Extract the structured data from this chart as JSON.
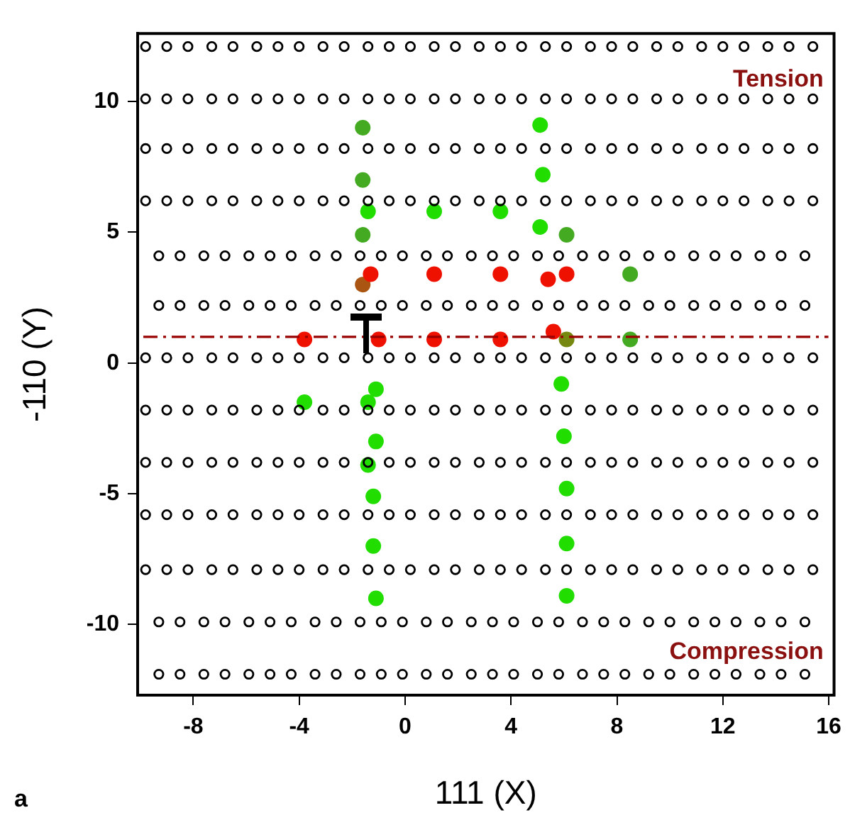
{
  "chart_data": {
    "type": "scatter",
    "xlabel": "111 (X)",
    "ylabel": "-110 (Y)",
    "xlim": [
      -10.1,
      16.2
    ],
    "ylim": [
      -12.7,
      12.6
    ],
    "xticks": [
      -8,
      -4,
      0,
      4,
      8,
      12,
      16
    ],
    "yticks": [
      -10,
      -5,
      0,
      5,
      10
    ],
    "grid": false,
    "legend": false,
    "marker": "circle",
    "annotations": [
      "Tension",
      "Compression",
      "a"
    ],
    "ref_lines": [
      {
        "axis": "y",
        "value": 1,
        "color": "#990000",
        "line_style": "dashed"
      }
    ],
    "series": [
      {
        "color": "#000000",
        "x": [
          -9.8,
          -9.0,
          -8.2,
          -7.3,
          -6.5,
          -5.6,
          -4.8,
          -4.0,
          -3.1,
          -2.3,
          -1.4,
          -0.6,
          0.2,
          1.1,
          1.9,
          2.8,
          3.6,
          4.4,
          5.3,
          6.1,
          7.0,
          7.8,
          8.6,
          9.5,
          10.3,
          11.2,
          12.0,
          12.8,
          13.7,
          14.5,
          15.4
        ],
        "values": [
          12.1,
          12.1,
          12.1,
          12.1,
          12.1,
          12.1,
          12.1,
          12.1,
          12.1,
          12.1,
          12.1,
          12.1,
          12.1,
          12.1,
          12.1,
          12.1,
          12.1,
          12.1,
          12.1,
          12.1,
          12.1,
          12.1,
          12.1,
          12.1,
          12.1,
          12.1,
          12.1,
          12.1,
          12.1,
          12.1,
          12.1
        ]
      },
      {
        "color": "#000000",
        "x": [
          -9.8,
          -9.0,
          -8.2,
          -7.3,
          -6.5,
          -5.6,
          -4.8,
          -4.0,
          -3.1,
          -2.3,
          -1.4,
          -0.6,
          0.2,
          1.1,
          1.9,
          2.8,
          3.6,
          4.4,
          5.3,
          6.1,
          7.0,
          7.8,
          8.6,
          9.5,
          10.3,
          11.2,
          12.0,
          12.8,
          13.7,
          14.5,
          15.4
        ],
        "values": [
          10.1,
          10.1,
          10.1,
          10.1,
          10.1,
          10.1,
          10.1,
          10.1,
          10.1,
          10.1,
          10.1,
          10.1,
          10.1,
          10.1,
          10.1,
          10.1,
          10.1,
          10.1,
          10.1,
          10.1,
          10.1,
          10.1,
          10.1,
          10.1,
          10.1,
          10.1,
          10.1,
          10.1,
          10.1,
          10.1,
          10.1
        ]
      },
      {
        "color": "#000000",
        "x": [
          -9.8,
          -9.0,
          -8.2,
          -7.3,
          -6.5,
          -5.6,
          -4.8,
          -4.0,
          -3.1,
          -2.3,
          -1.4,
          -0.6,
          0.2,
          1.1,
          1.9,
          2.8,
          3.6,
          4.4,
          5.3,
          6.1,
          7.0,
          7.8,
          8.6,
          9.5,
          10.3,
          11.2,
          12.0,
          12.8,
          13.7,
          14.5,
          15.4
        ],
        "values": [
          8.2,
          8.2,
          8.2,
          8.2,
          8.2,
          8.2,
          8.2,
          8.2,
          8.2,
          8.2,
          8.2,
          8.2,
          8.2,
          8.2,
          8.2,
          8.2,
          8.2,
          8.2,
          8.2,
          8.2,
          8.2,
          8.2,
          8.2,
          8.2,
          8.2,
          8.2,
          8.2,
          8.2,
          8.2,
          8.2,
          8.2
        ]
      },
      {
        "color": "#000000",
        "x": [
          -9.8,
          -9.0,
          -8.2,
          -7.3,
          -6.5,
          -5.6,
          -4.8,
          -4.0,
          -3.1,
          -2.3,
          -1.4,
          -0.6,
          0.2,
          1.1,
          1.9,
          2.8,
          3.6,
          4.4,
          5.3,
          6.1,
          7.0,
          7.8,
          8.6,
          9.5,
          10.3,
          11.2,
          12.0,
          12.8,
          13.7,
          14.5,
          15.4
        ],
        "values": [
          6.2,
          6.2,
          6.2,
          6.2,
          6.2,
          6.2,
          6.2,
          6.2,
          6.2,
          6.2,
          6.2,
          6.2,
          6.2,
          6.2,
          6.2,
          6.2,
          6.2,
          6.2,
          6.2,
          6.2,
          6.2,
          6.2,
          6.2,
          6.2,
          6.2,
          6.2,
          6.2,
          6.2,
          6.2,
          6.2,
          6.2
        ]
      },
      {
        "color": "#000000",
        "x": [
          -9.3,
          -8.5,
          -7.6,
          -6.8,
          -5.9,
          -5.1,
          -4.3,
          -3.4,
          -2.6,
          -1.7,
          -0.9,
          -0.1,
          0.8,
          1.6,
          2.5,
          3.3,
          4.1,
          5.0,
          5.8,
          6.7,
          7.5,
          8.3,
          9.2,
          10.0,
          10.9,
          11.7,
          12.5,
          13.4,
          14.2,
          15.1
        ],
        "values": [
          4.1,
          4.1,
          4.1,
          4.1,
          4.1,
          4.1,
          4.1,
          4.1,
          4.1,
          4.1,
          4.1,
          4.1,
          4.1,
          4.1,
          4.1,
          4.1,
          4.1,
          4.1,
          4.1,
          4.1,
          4.1,
          4.1,
          4.1,
          4.1,
          4.1,
          4.1,
          4.1,
          4.1,
          4.1,
          4.1
        ]
      },
      {
        "color": "#000000",
        "x": [
          -9.3,
          -8.5,
          -7.6,
          -6.8,
          -5.9,
          -5.1,
          -4.3,
          -3.4,
          -2.6,
          -1.7,
          -0.9,
          -0.1,
          0.8,
          1.6,
          2.5,
          3.3,
          4.1,
          5.0,
          5.8,
          6.7,
          7.5,
          8.3,
          9.2,
          10.0,
          10.9,
          11.7,
          12.5,
          13.4,
          14.2,
          15.1
        ],
        "values": [
          2.2,
          2.2,
          2.2,
          2.2,
          2.2,
          2.2,
          2.2,
          2.2,
          2.2,
          2.2,
          2.2,
          2.2,
          2.2,
          2.2,
          2.2,
          2.2,
          2.2,
          2.2,
          2.2,
          2.2,
          2.2,
          2.2,
          2.2,
          2.2,
          2.2,
          2.2,
          2.2,
          2.2,
          2.2,
          2.2
        ]
      },
      {
        "color": "#000000",
        "x": [
          -9.8,
          -9.0,
          -8.2,
          -7.3,
          -6.5,
          -5.6,
          -4.8,
          -4.0,
          -3.1,
          -2.3,
          -1.4,
          -0.6,
          0.2,
          1.1,
          1.9,
          2.8,
          3.6,
          4.4,
          5.3,
          6.1,
          7.0,
          7.8,
          8.6,
          9.5,
          10.3,
          11.2,
          12.0,
          12.8,
          13.7,
          14.5,
          15.4
        ],
        "values": [
          0.2,
          0.2,
          0.2,
          0.2,
          0.2,
          0.2,
          0.2,
          0.2,
          0.2,
          0.2,
          0.2,
          0.2,
          0.2,
          0.2,
          0.2,
          0.2,
          0.2,
          0.2,
          0.2,
          0.2,
          0.2,
          0.2,
          0.2,
          0.2,
          0.2,
          0.2,
          0.2,
          0.2,
          0.2,
          0.2,
          0.2
        ]
      },
      {
        "color": "#000000",
        "x": [
          -9.8,
          -9.0,
          -8.2,
          -7.3,
          -6.5,
          -5.6,
          -4.8,
          -4.0,
          -3.1,
          -2.3,
          -1.4,
          -0.6,
          0.2,
          1.1,
          1.9,
          2.8,
          3.6,
          4.4,
          5.3,
          6.1,
          7.0,
          7.8,
          8.6,
          9.5,
          10.3,
          11.2,
          12.0,
          12.8,
          13.7,
          14.5,
          15.4
        ],
        "values": [
          -1.8,
          -1.8,
          -1.8,
          -1.8,
          -1.8,
          -1.8,
          -1.8,
          -1.8,
          -1.8,
          -1.8,
          -1.8,
          -1.8,
          -1.8,
          -1.8,
          -1.8,
          -1.8,
          -1.8,
          -1.8,
          -1.8,
          -1.8,
          -1.8,
          -1.8,
          -1.8,
          -1.8,
          -1.8,
          -1.8,
          -1.8,
          -1.8,
          -1.8,
          -1.8,
          -1.8
        ]
      },
      {
        "color": "#000000",
        "x": [
          -9.8,
          -9.0,
          -8.2,
          -7.3,
          -6.5,
          -5.6,
          -4.8,
          -4.0,
          -3.1,
          -2.3,
          -1.4,
          -0.6,
          0.2,
          1.1,
          1.9,
          2.8,
          3.6,
          4.4,
          5.3,
          6.1,
          7.0,
          7.8,
          8.6,
          9.5,
          10.3,
          11.2,
          12.0,
          12.8,
          13.7,
          14.5,
          15.4
        ],
        "values": [
          -3.8,
          -3.8,
          -3.8,
          -3.8,
          -3.8,
          -3.8,
          -3.8,
          -3.8,
          -3.8,
          -3.8,
          -3.8,
          -3.8,
          -3.8,
          -3.8,
          -3.8,
          -3.8,
          -3.8,
          -3.8,
          -3.8,
          -3.8,
          -3.8,
          -3.8,
          -3.8,
          -3.8,
          -3.8,
          -3.8,
          -3.8,
          -3.8,
          -3.8,
          -3.8,
          -3.8
        ]
      },
      {
        "color": "#000000",
        "x": [
          -9.8,
          -9.0,
          -8.2,
          -7.3,
          -6.5,
          -5.6,
          -4.8,
          -4.0,
          -3.1,
          -2.3,
          -1.4,
          -0.6,
          0.2,
          1.1,
          1.9,
          2.8,
          3.6,
          4.4,
          5.3,
          6.1,
          7.0,
          7.8,
          8.6,
          9.5,
          10.3,
          11.2,
          12.0,
          12.8,
          13.7,
          14.5,
          15.4
        ],
        "values": [
          -5.8,
          -5.8,
          -5.8,
          -5.8,
          -5.8,
          -5.8,
          -5.8,
          -5.8,
          -5.8,
          -5.8,
          -5.8,
          -5.8,
          -5.8,
          -5.8,
          -5.8,
          -5.8,
          -5.8,
          -5.8,
          -5.8,
          -5.8,
          -5.8,
          -5.8,
          -5.8,
          -5.8,
          -5.8,
          -5.8,
          -5.8,
          -5.8,
          -5.8,
          -5.8,
          -5.8
        ]
      },
      {
        "color": "#000000",
        "x": [
          -9.8,
          -9.0,
          -8.2,
          -7.3,
          -6.5,
          -5.6,
          -4.8,
          -4.0,
          -3.1,
          -2.3,
          -1.4,
          -0.6,
          0.2,
          1.1,
          1.9,
          2.8,
          3.6,
          4.4,
          5.3,
          6.1,
          7.0,
          7.8,
          8.6,
          9.5,
          10.3,
          11.2,
          12.0,
          12.8,
          13.7,
          14.5,
          15.4
        ],
        "values": [
          -7.9,
          -7.9,
          -7.9,
          -7.9,
          -7.9,
          -7.9,
          -7.9,
          -7.9,
          -7.9,
          -7.9,
          -7.9,
          -7.9,
          -7.9,
          -7.9,
          -7.9,
          -7.9,
          -7.9,
          -7.9,
          -7.9,
          -7.9,
          -7.9,
          -7.9,
          -7.9,
          -7.9,
          -7.9,
          -7.9,
          -7.9,
          -7.9,
          -7.9,
          -7.9,
          -7.9
        ]
      },
      {
        "color": "#000000",
        "x": [
          -9.3,
          -8.5,
          -7.6,
          -6.8,
          -5.9,
          -5.1,
          -4.3,
          -3.4,
          -2.6,
          -1.7,
          -0.9,
          -0.1,
          0.8,
          1.6,
          2.5,
          3.3,
          4.1,
          5.0,
          5.8,
          6.7,
          7.5,
          8.3,
          9.2,
          10.0,
          10.9,
          11.7,
          12.5,
          13.4,
          14.2,
          15.1
        ],
        "values": [
          -9.9,
          -9.9,
          -9.9,
          -9.9,
          -9.9,
          -9.9,
          -9.9,
          -9.9,
          -9.9,
          -9.9,
          -9.9,
          -9.9,
          -9.9,
          -9.9,
          -9.9,
          -9.9,
          -9.9,
          -9.9,
          -9.9,
          -9.9,
          -9.9,
          -9.9,
          -9.9,
          -9.9,
          -9.9,
          -9.9,
          -9.9,
          -9.9,
          -9.9,
          -9.9
        ]
      },
      {
        "color": "#000000",
        "x": [
          -9.3,
          -8.5,
          -7.6,
          -6.8,
          -5.9,
          -5.1,
          -4.3,
          -3.4,
          -2.6,
          -1.7,
          -0.9,
          -0.1,
          0.8,
          1.6,
          2.5,
          3.3,
          4.1,
          5.0,
          5.8,
          6.7,
          7.5,
          8.3,
          9.2,
          10.0,
          10.9,
          11.7,
          12.5,
          13.4,
          14.2,
          15.1
        ],
        "values": [
          -11.9,
          -11.9,
          -11.9,
          -11.9,
          -11.9,
          -11.9,
          -11.9,
          -11.9,
          -11.9,
          -11.9,
          -11.9,
          -11.9,
          -11.9,
          -11.9,
          -11.9,
          -11.9,
          -11.9,
          -11.9,
          -11.9,
          -11.9,
          -11.9,
          -11.9,
          -11.9,
          -11.9,
          -11.9,
          -11.9,
          -11.9,
          -11.9,
          -11.9,
          -11.9
        ]
      },
      {
        "color": "#ee1100",
        "x": [
          -1.3,
          1.1,
          3.6,
          5.4,
          6.1,
          -3.8,
          -1.0,
          1.1,
          3.6,
          5.6
        ],
        "values": [
          3.4,
          3.4,
          3.4,
          3.2,
          3.4,
          0.9,
          0.9,
          0.9,
          0.9,
          1.2
        ]
      },
      {
        "color": "#44aa22",
        "x": [
          -1.6,
          -1.6,
          -1.6,
          6.1,
          8.5,
          8.5
        ],
        "values": [
          9.0,
          7.0,
          4.9,
          4.9,
          3.4,
          0.9
        ]
      },
      {
        "color": "#22dd00",
        "x": [
          5.1,
          5.2,
          -1.4,
          1.1,
          3.6,
          5.1,
          -1.1,
          5.9,
          -3.8,
          -1.4,
          -1.1,
          6.0,
          -1.4,
          -1.2,
          6.1,
          -1.2,
          6.1,
          -1.1,
          6.1
        ],
        "values": [
          9.1,
          7.2,
          5.8,
          5.8,
          5.8,
          5.2,
          -1.0,
          -0.8,
          -1.5,
          -1.5,
          -3.0,
          -2.8,
          -3.9,
          -5.1,
          -4.8,
          -7.0,
          -6.9,
          -9.0,
          -8.9
        ]
      },
      {
        "color": "#aa5511",
        "x": [
          -1.6
        ],
        "values": [
          3.0
        ]
      },
      {
        "color": "#778811",
        "x": [
          6.1
        ],
        "values": [
          0.9
        ]
      }
    ]
  }
}
